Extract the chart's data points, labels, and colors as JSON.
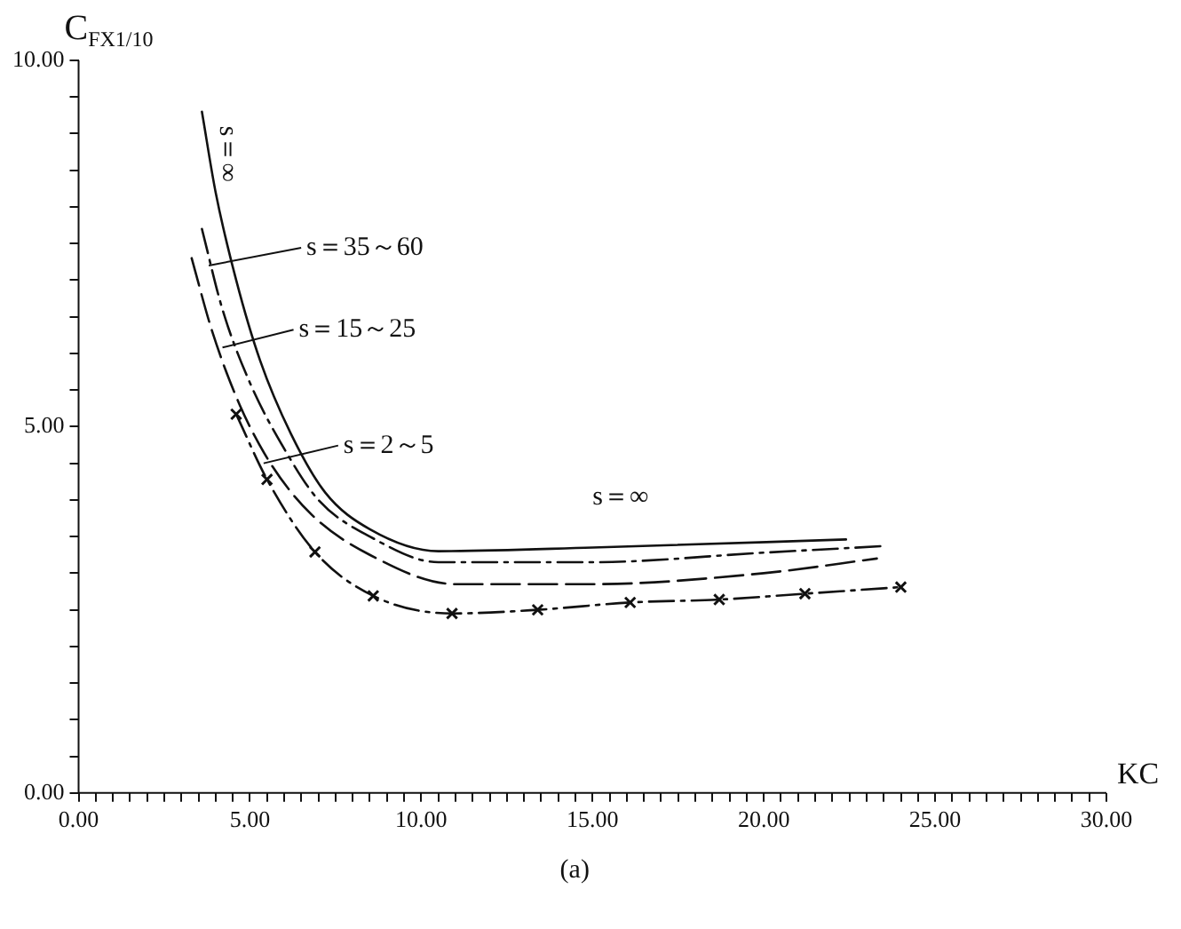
{
  "chart_data": {
    "type": "line",
    "ylabel": "C$_{FX1/10}$",
    "xlabel": "KC",
    "xlim": [
      0,
      30
    ],
    "ylim": [
      0,
      10
    ],
    "xticks": [
      {
        "value": 0,
        "label": "0.00"
      },
      {
        "value": 5,
        "label": "5.00"
      },
      {
        "value": 10,
        "label": "10.00"
      },
      {
        "value": 15,
        "label": "15.00"
      },
      {
        "value": 20,
        "label": "20.00"
      },
      {
        "value": 25,
        "label": "25.00"
      },
      {
        "value": 30,
        "label": "30.00"
      }
    ],
    "yticks": [
      {
        "value": 0,
        "label": "0.00"
      },
      {
        "value": 5,
        "label": "5.00"
      },
      {
        "value": 10,
        "label": "10.00"
      }
    ],
    "grid": false,
    "legend": false,
    "series": [
      {
        "color": "#111111",
        "line_style": "solid",
        "marker": "none",
        "x": [
          3.6,
          4.0,
          4.6,
          5.3,
          6.2,
          7.2,
          8.5,
          10.5,
          15,
          22.4
        ],
        "values": [
          9.3,
          8.2,
          7.0,
          5.9,
          4.9,
          4.1,
          3.6,
          3.3,
          3.35,
          3.46
        ]
      },
      {
        "color": "#111111",
        "line_style": "dashed",
        "marker": "none",
        "x": [
          3.6,
          4.2,
          5.0,
          6.0,
          7.0,
          8.5,
          10.5,
          15,
          20,
          23.5
        ],
        "values": [
          7.7,
          6.6,
          5.6,
          4.7,
          4.0,
          3.5,
          3.15,
          3.15,
          3.28,
          3.37
        ]
      },
      {
        "color": "#111111",
        "line_style": "dashed",
        "marker": "none",
        "x": [
          3.3,
          3.9,
          4.7,
          5.6,
          6.8,
          8.5,
          11,
          15,
          20,
          23.3
        ],
        "values": [
          7.3,
          6.3,
          5.3,
          4.5,
          3.8,
          3.25,
          2.85,
          2.85,
          3.0,
          3.2
        ]
      },
      {
        "color": "#111111",
        "line_style": "dashed",
        "marker": "cross",
        "x": [
          4.6,
          5.5,
          6.9,
          8.6,
          10.9,
          13.4,
          16.1,
          18.7,
          21.2,
          24.0
        ],
        "values": [
          5.17,
          4.28,
          3.29,
          2.69,
          2.45,
          2.5,
          2.6,
          2.64,
          2.72,
          2.81
        ]
      }
    ],
    "annotations": [
      {
        "text": "s＝∞",
        "x": 3.6,
        "y": 9.3
      },
      {
        "text": "s＝35～60",
        "x": 3.8,
        "y": 7.2
      },
      {
        "text": "s＝15～25",
        "x": 4.2,
        "y": 6.08
      },
      {
        "text": "s＝2～5",
        "x": 5.4,
        "y": 4.5
      },
      {
        "text": "s＝∞",
        "x": 15,
        "y": 3.35
      },
      "(a)"
    ]
  }
}
